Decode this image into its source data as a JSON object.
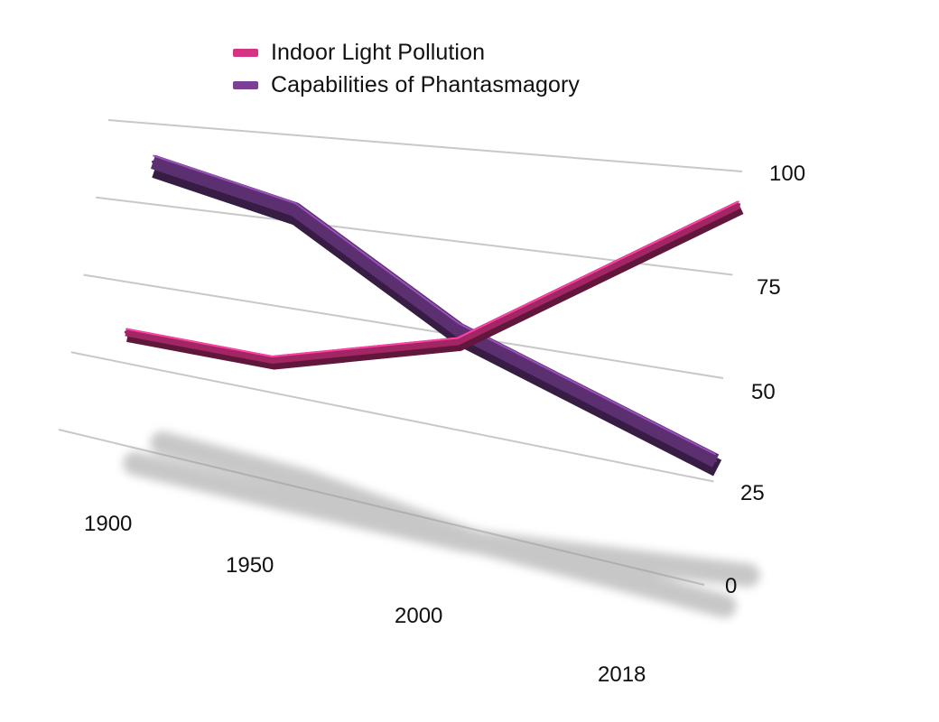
{
  "chart_data": {
    "type": "line",
    "style": "3d-ribbon",
    "categories": [
      "1900",
      "1950",
      "2000",
      "2018"
    ],
    "series": [
      {
        "name": "Indoor Light Pollution",
        "values": [
          35,
          35,
          50,
          92
        ],
        "color": "#d63384"
      },
      {
        "name": "Capabilities of Phantasmagory",
        "values": [
          90,
          80,
          53,
          30
        ],
        "color": "#7b3f96"
      }
    ],
    "y_ticks": [
      "0",
      "25",
      "50",
      "75",
      "100"
    ],
    "ylim": [
      0,
      100
    ],
    "grid": true,
    "legend_position": "top-left"
  }
}
